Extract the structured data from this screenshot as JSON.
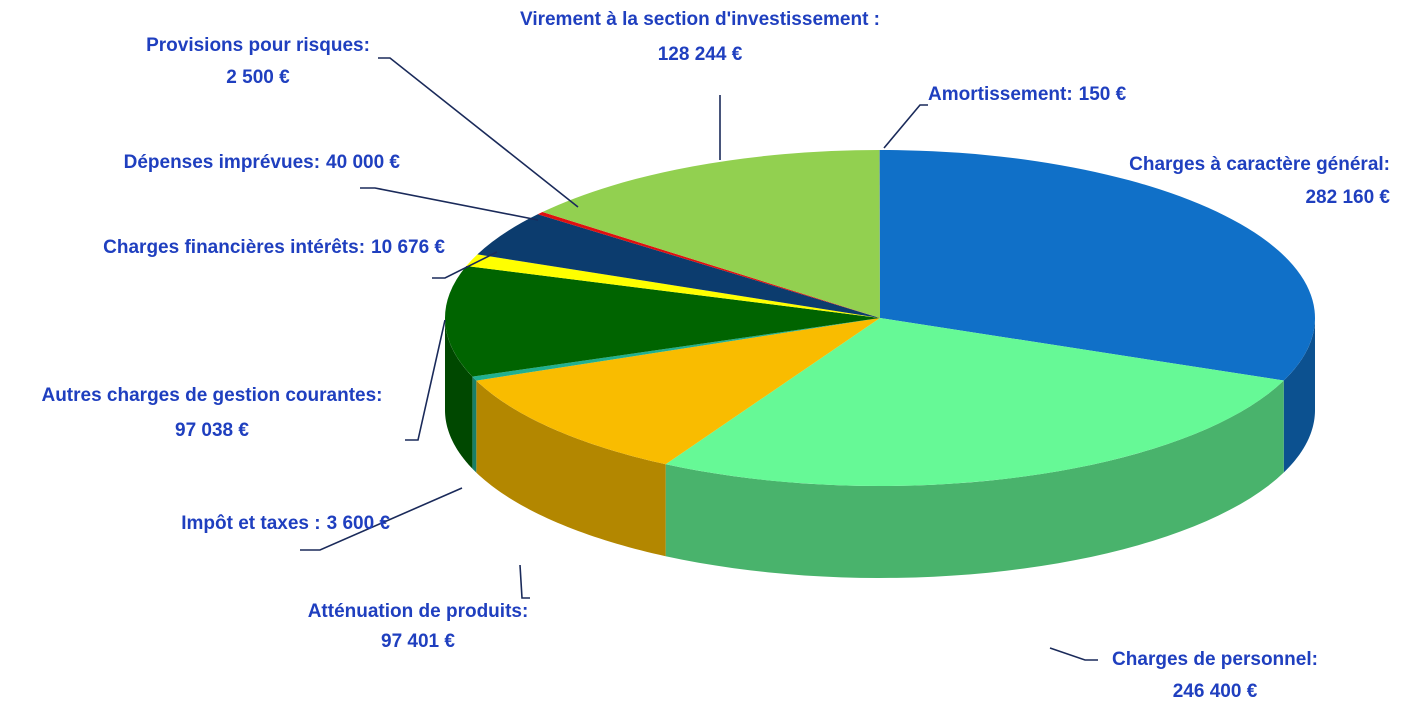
{
  "chart_data": {
    "type": "pie",
    "categories": [
      "Charges à caractère général:",
      "Charges de personnel:",
      "Atténuation de produits:",
      "Impôt et taxes :",
      "Autres charges de gestion courantes:",
      "Charges financières intérêts:",
      "Dépenses imprévues:",
      "Provisions pour risques:",
      "Virement à la section d'investissement :",
      "Amortissement:"
    ],
    "values": [
      282160,
      246400,
      97401,
      3600,
      97038,
      10676,
      40000,
      2500,
      128244,
      150
    ],
    "value_labels": [
      "282 160 €",
      "246 400 €",
      "97 401 €",
      "3 600 €",
      "97 038 €",
      "10 676 €",
      "40 000 €",
      "2 500 €",
      "128 244 €",
      "150 €"
    ],
    "colors": [
      "#1070c8",
      "#66f996",
      "#f9bc00",
      "#20b090",
      "#006400",
      "#ffff00",
      "#0c3c6e",
      "#e01010",
      "#92d050",
      "#4a7bd0"
    ]
  }
}
